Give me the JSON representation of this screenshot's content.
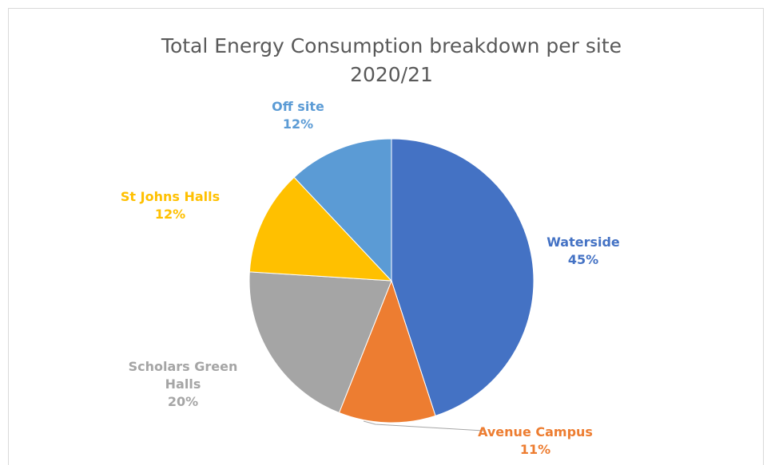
{
  "chart_data": {
    "type": "pie",
    "title": "Total Energy Consumption breakdown per site 2020/21",
    "categories": [
      "Waterside",
      "Avenue Campus",
      "Scholars Green Halls",
      "St Johns Halls",
      "Off site"
    ],
    "values": [
      45,
      11,
      20,
      12,
      12
    ],
    "value_labels": [
      "45%",
      "11%",
      "20%",
      "12%",
      "12%"
    ],
    "colors": [
      "#4472c4",
      "#ed7d31",
      "#a5a5a5",
      "#ffc000",
      "#5b9bd5"
    ]
  }
}
